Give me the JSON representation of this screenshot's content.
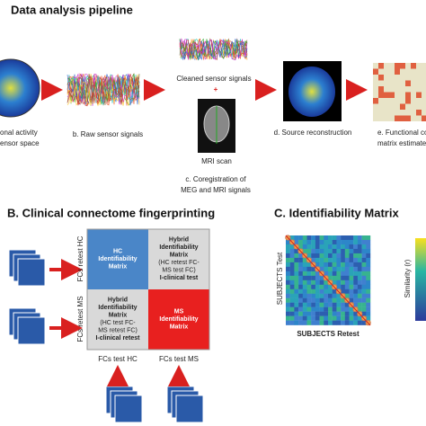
{
  "panel_a": {
    "title": "Data analysis pipeline",
    "steps": [
      {
        "label": [
          "onal activity",
          "ensor space"
        ]
      },
      {
        "label": [
          "b. Raw sensor signals"
        ]
      },
      {
        "label": [
          "Cleaned sensor signals"
        ]
      },
      {
        "label": [
          "+"
        ]
      },
      {
        "label": [
          "MRI scan"
        ]
      },
      {
        "label": [
          "c. Coregistration of",
          "MEG and MRI signals"
        ]
      },
      {
        "label": [
          "d. Source reconstruction"
        ]
      },
      {
        "label": [
          "e. Functional con",
          "matrix estimated"
        ]
      }
    ]
  },
  "panel_b": {
    "title": "B. Clinical connectome fingerprinting",
    "quadrants": [
      [
        "HC",
        "Identifiability",
        "Matrix"
      ],
      [
        "Hybrid",
        "Identifiability",
        "Matrix",
        "(HC retest FC-",
        "MS test FC)",
        "I-clinical test"
      ],
      [
        "Hybrid",
        "Identifiability",
        "Matrix",
        "(HC test FC-",
        "MS retest FC)",
        "I-clinical retest"
      ],
      [
        "MS",
        "Identifiability",
        "Matrix"
      ]
    ],
    "row_labels": [
      "FCs retest HC",
      "FCs retest MS"
    ],
    "col_labels": [
      "FCs test HC",
      "FCs test MS"
    ]
  },
  "panel_c": {
    "title": "C. Identifiability Matrix",
    "y_label": "SUBJECTS Test",
    "x_label": "SUBJECTS Retest",
    "colorbar_label": "Similarity (r)"
  }
}
